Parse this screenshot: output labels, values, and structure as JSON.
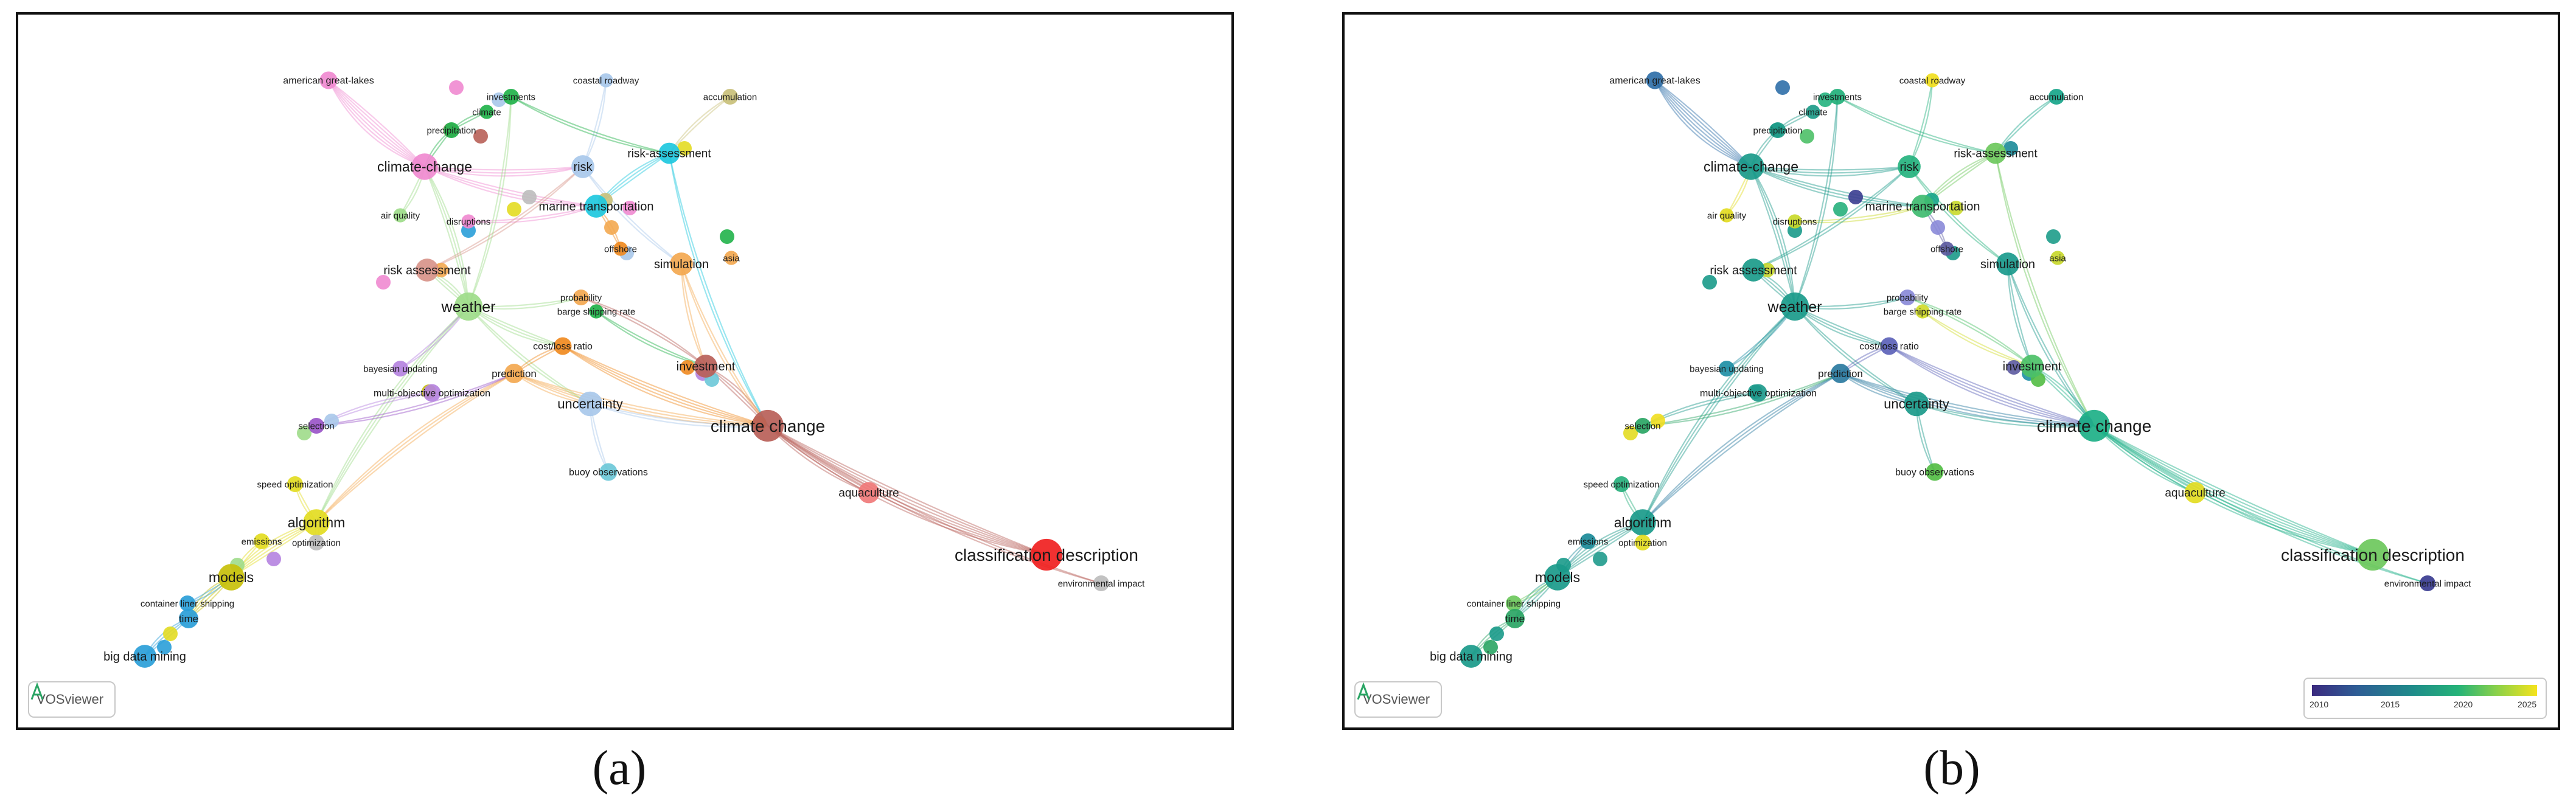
{
  "panels": [
    {
      "id": "a",
      "caption": "(a)",
      "logo": "VOSviewer"
    },
    {
      "id": "b",
      "caption": "(b)",
      "logo": "VOSviewer",
      "legend": {
        "ticks": [
          "2010",
          "2015",
          "2020",
          "2025"
        ],
        "colors": [
          "#3b2a7f",
          "#2e5d95",
          "#1f8c8a",
          "#25b378",
          "#8ad14a",
          "#f5e31c"
        ]
      }
    }
  ],
  "nodes": [
    {
      "label": "american great-lakes",
      "c": "#f08ad0",
      "y2": "#2f6fa8",
      "s": 10
    },
    {
      "label": "investments",
      "c": "#21b24a",
      "y2": "#22b07a",
      "s": 9
    },
    {
      "label": "coastal roadway",
      "c": "#a8c8ea",
      "y2": "#f1de1e",
      "s": 8
    },
    {
      "label": "accumulation",
      "c": "#c9c07a",
      "y2": "#17a58a",
      "s": 9
    },
    {
      "label": "climate",
      "c": "#21b24a",
      "y2": "#1d9c89",
      "s": 8
    },
    {
      "label": "precipitation",
      "c": "#21b24a",
      "y2": "#1d9c89",
      "s": 9
    },
    {
      "label": "climate-change",
      "c": "#f08ad0",
      "y2": "#1a9a8a",
      "s": 15
    },
    {
      "label": "risk",
      "c": "#a8c8ea",
      "y2": "#25b27e",
      "s": 13
    },
    {
      "label": "risk-assessment",
      "c": "#1ec8de",
      "y2": "#6cc85c",
      "s": 12
    },
    {
      "label": "air quality",
      "c": "#9edc8a",
      "y2": "#e3dc22",
      "s": 8
    },
    {
      "label": "disruptions",
      "c": "#f08ad0",
      "y2": "#c9d92a",
      "s": 8
    },
    {
      "label": "marine transportation",
      "c": "#1ec8de",
      "y2": "#3fbb70",
      "s": 13
    },
    {
      "label": "offshore",
      "c": "#f08a20",
      "y2": "#5c5aa0",
      "s": 8
    },
    {
      "label": "asia",
      "c": "#f3a850",
      "y2": "#c8d82c",
      "s": 8
    },
    {
      "label": "risk assessment",
      "c": "#d8948a",
      "y2": "#1b9b8a",
      "s": 13
    },
    {
      "label": "simulation",
      "c": "#f3a850",
      "y2": "#1a9a8c",
      "s": 13
    },
    {
      "label": "weather",
      "c": "#9edc8a",
      "y2": "#1a9a8a",
      "s": 16
    },
    {
      "label": "probability",
      "c": "#f3a850",
      "y2": "#8a8ad8",
      "s": 9
    },
    {
      "label": "barge shipping rate",
      "c": "#21b24a",
      "y2": "#d0db2a",
      "s": 8
    },
    {
      "label": "cost/loss ratio",
      "c": "#f08a20",
      "y2": "#5c62b8",
      "s": 10
    },
    {
      "label": "bayesian updating",
      "c": "#b583e0",
      "y2": "#1e8fa5",
      "s": 9
    },
    {
      "label": "investment",
      "c": "#b86058",
      "y2": "#4cc067",
      "s": 13
    },
    {
      "label": "prediction",
      "c": "#f3a850",
      "y2": "#2a7aa0",
      "s": 11
    },
    {
      "label": "multi-objective optimization",
      "c": "#b583e0",
      "y2": "#1f9a8c",
      "s": 10
    },
    {
      "label": "uncertainty",
      "c": "#a8c8ea",
      "y2": "#1b9a8a",
      "s": 14
    },
    {
      "label": "climate change",
      "c": "#b86058",
      "y2": "#1db087",
      "s": 18
    },
    {
      "label": "selection",
      "c": "#9a55c8",
      "y2": "#2aa564",
      "s": 9
    },
    {
      "label": "buoy observations",
      "c": "#6cc8d8",
      "y2": "#52bd44",
      "s": 10
    },
    {
      "label": "speed optimization",
      "c": "#e3dc22",
      "y2": "#27b07c",
      "s": 9
    },
    {
      "label": "aquaculture",
      "c": "#f07a7a",
      "y2": "#e3dc22",
      "s": 12
    },
    {
      "label": "algorithm",
      "c": "#e3dc22",
      "y2": "#1a9a8a",
      "s": 15
    },
    {
      "label": "emissions",
      "c": "#e3dc22",
      "y2": "#1a8a98",
      "s": 9
    },
    {
      "label": "optimization",
      "c": "#bdbdbd",
      "y2": "#e3dc22",
      "s": 9
    },
    {
      "label": "classification description",
      "c": "#f02020",
      "y2": "#6cc85c",
      "s": 18
    },
    {
      "label": "models",
      "c": "#c8c00a",
      "y2": "#1a9a8a",
      "s": 15
    },
    {
      "label": "environmental impact",
      "c": "#bdbdbd",
      "y2": "#3a3c90",
      "s": 9
    },
    {
      "label": "container liner shipping",
      "c": "#2a9ed8",
      "y2": "#6cc85c",
      "s": 9
    },
    {
      "label": "time",
      "c": "#2a9ed8",
      "y2": "#2aa564",
      "s": 11
    },
    {
      "label": "big data mining",
      "c": "#2a9ed8",
      "y2": "#1a9a8a",
      "s": 13
    }
  ]
}
